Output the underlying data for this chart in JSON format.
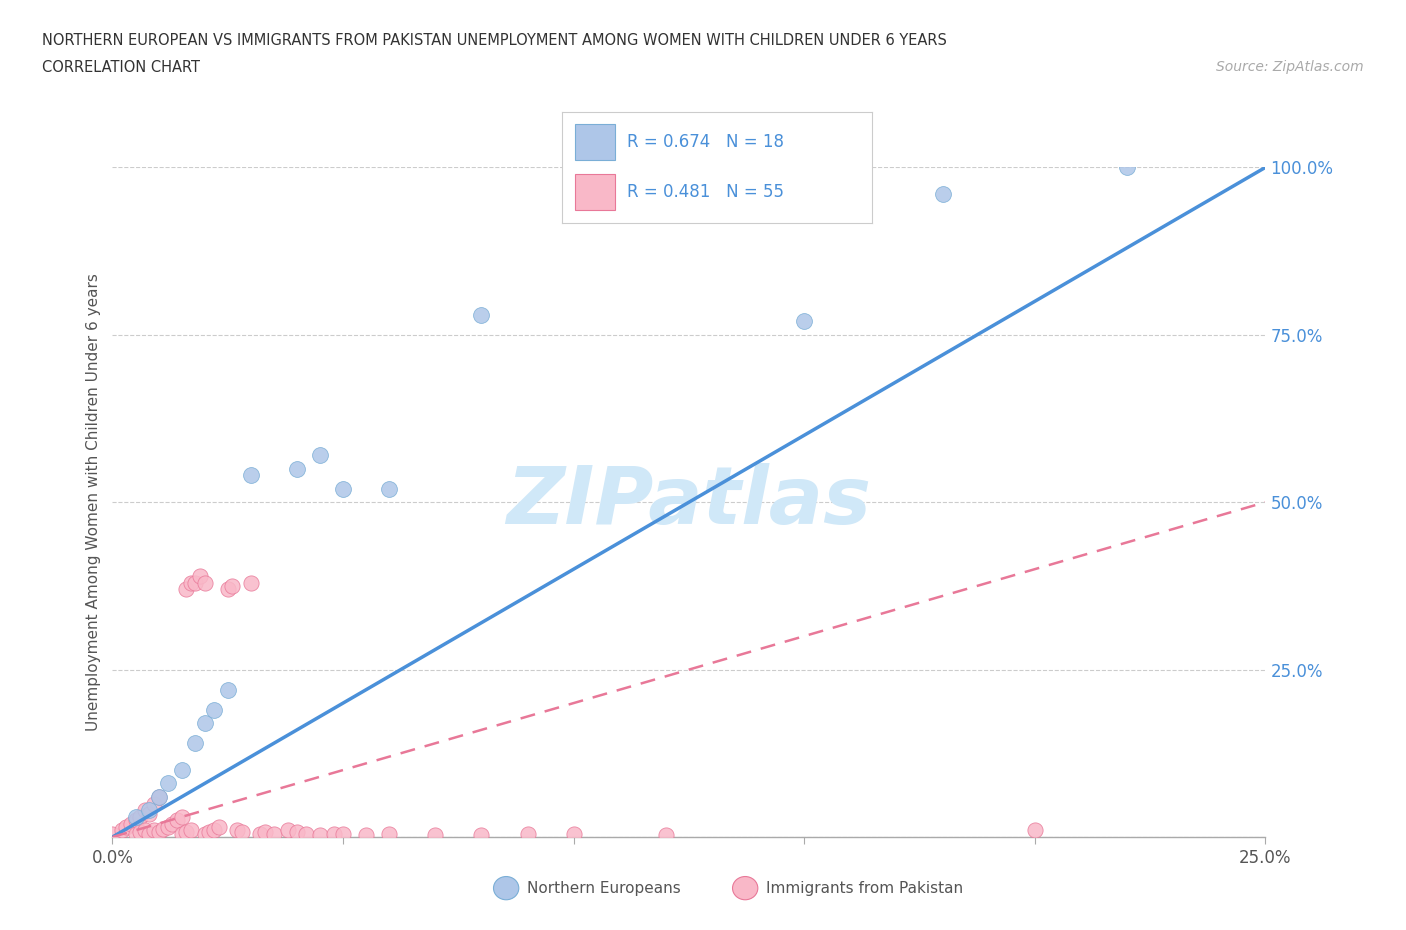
{
  "title_line1": "NORTHERN EUROPEAN VS IMMIGRANTS FROM PAKISTAN UNEMPLOYMENT AMONG WOMEN WITH CHILDREN UNDER 6 YEARS",
  "title_line2": "CORRELATION CHART",
  "source": "Source: ZipAtlas.com",
  "ylabel": "Unemployment Among Women with Children Under 6 years",
  "xlim": [
    0,
    0.25
  ],
  "ylim": [
    0,
    1.0
  ],
  "blue_color": "#aec6e8",
  "blue_edge": "#7aaed6",
  "pink_color": "#f9b8c8",
  "pink_edge": "#e87898",
  "line_blue": "#4a90d9",
  "line_pink": "#e87898",
  "watermark_text": "ZIPatlas",
  "watermark_color": "#d0e8f8",
  "blue_scatter": [
    [
      0.005,
      0.03
    ],
    [
      0.008,
      0.04
    ],
    [
      0.01,
      0.06
    ],
    [
      0.012,
      0.08
    ],
    [
      0.015,
      0.1
    ],
    [
      0.018,
      0.14
    ],
    [
      0.02,
      0.17
    ],
    [
      0.022,
      0.19
    ],
    [
      0.025,
      0.22
    ],
    [
      0.03,
      0.54
    ],
    [
      0.04,
      0.55
    ],
    [
      0.045,
      0.57
    ],
    [
      0.05,
      0.52
    ],
    [
      0.06,
      0.52
    ],
    [
      0.08,
      0.78
    ],
    [
      0.15,
      0.77
    ],
    [
      0.18,
      0.96
    ],
    [
      0.22,
      1.0
    ]
  ],
  "pink_scatter": [
    [
      0.0,
      0.005
    ],
    [
      0.002,
      0.01
    ],
    [
      0.003,
      0.015
    ],
    [
      0.004,
      0.02
    ],
    [
      0.005,
      0.005
    ],
    [
      0.005,
      0.025
    ],
    [
      0.006,
      0.008
    ],
    [
      0.006,
      0.03
    ],
    [
      0.007,
      0.01
    ],
    [
      0.007,
      0.04
    ],
    [
      0.008,
      0.005
    ],
    [
      0.008,
      0.035
    ],
    [
      0.009,
      0.01
    ],
    [
      0.009,
      0.05
    ],
    [
      0.01,
      0.008
    ],
    [
      0.01,
      0.06
    ],
    [
      0.011,
      0.012
    ],
    [
      0.012,
      0.015
    ],
    [
      0.013,
      0.02
    ],
    [
      0.014,
      0.025
    ],
    [
      0.015,
      0.005
    ],
    [
      0.015,
      0.03
    ],
    [
      0.016,
      0.008
    ],
    [
      0.016,
      0.37
    ],
    [
      0.017,
      0.01
    ],
    [
      0.017,
      0.38
    ],
    [
      0.018,
      0.38
    ],
    [
      0.019,
      0.39
    ],
    [
      0.02,
      0.005
    ],
    [
      0.02,
      0.38
    ],
    [
      0.021,
      0.008
    ],
    [
      0.022,
      0.01
    ],
    [
      0.023,
      0.015
    ],
    [
      0.025,
      0.37
    ],
    [
      0.026,
      0.375
    ],
    [
      0.027,
      0.01
    ],
    [
      0.028,
      0.008
    ],
    [
      0.03,
      0.38
    ],
    [
      0.032,
      0.005
    ],
    [
      0.033,
      0.008
    ],
    [
      0.035,
      0.005
    ],
    [
      0.038,
      0.01
    ],
    [
      0.04,
      0.008
    ],
    [
      0.042,
      0.005
    ],
    [
      0.045,
      0.003
    ],
    [
      0.048,
      0.005
    ],
    [
      0.05,
      0.004
    ],
    [
      0.055,
      0.003
    ],
    [
      0.06,
      0.004
    ],
    [
      0.07,
      0.003
    ],
    [
      0.08,
      0.003
    ],
    [
      0.09,
      0.005
    ],
    [
      0.1,
      0.004
    ],
    [
      0.12,
      0.003
    ],
    [
      0.2,
      0.01
    ]
  ],
  "blue_line_x": [
    0.0,
    0.25
  ],
  "blue_line_y": [
    0.0,
    1.0
  ],
  "pink_line_x": [
    0.0,
    0.25
  ],
  "pink_line_y": [
    0.0,
    0.5
  ]
}
